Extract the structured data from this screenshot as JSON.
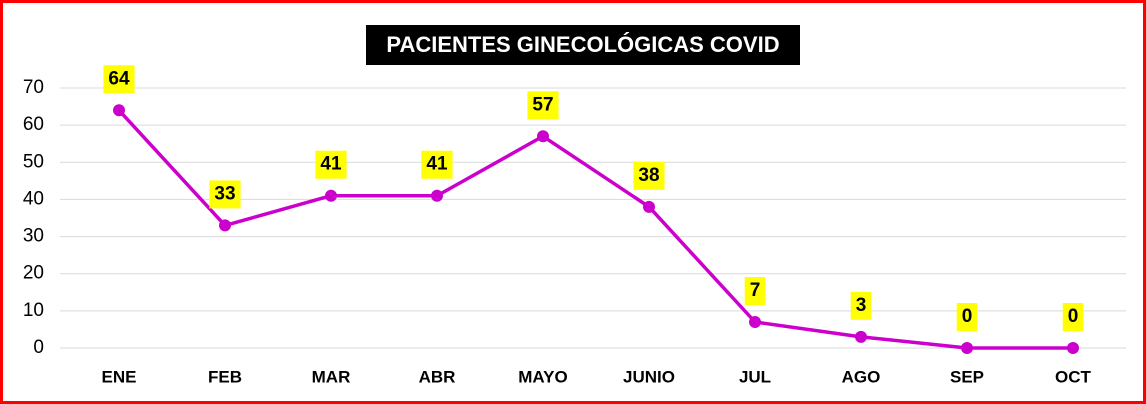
{
  "chart_data": {
    "type": "line",
    "title": "PACIENTES GINECOLÓGICAS COVID",
    "categories": [
      "ENE",
      "FEB",
      "MAR",
      "ABR",
      "MAYO",
      "JUNIO",
      "JUL",
      "AGO",
      "SEP",
      "OCT"
    ],
    "series": [
      {
        "name": "PACIENTES GINECOLÓGICAS COVID",
        "color": "#cc00cc",
        "values": [
          64,
          33,
          41,
          41,
          57,
          38,
          7,
          3,
          0,
          0
        ]
      }
    ],
    "ylim": [
      0,
      70
    ],
    "yticks": [
      0,
      10,
      20,
      30,
      40,
      50,
      60,
      70
    ],
    "grid": true,
    "data_label_color": "#ffff00"
  }
}
